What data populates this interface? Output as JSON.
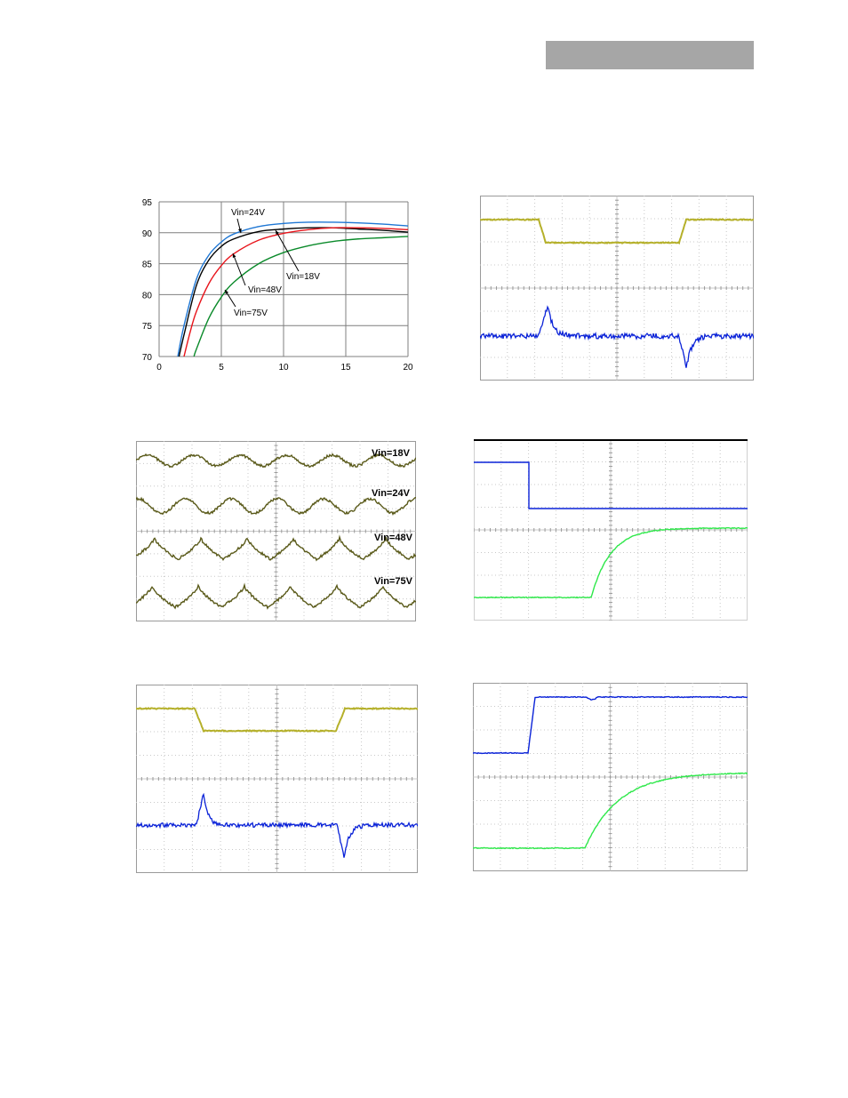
{
  "header": {
    "box_color": "#a6a6a6"
  },
  "efficiency_chart": {
    "chart_data": {
      "type": "line",
      "xlim": [
        0,
        20
      ],
      "ylim": [
        70,
        95
      ],
      "x_ticks": [
        "0",
        "5",
        "10",
        "15",
        "20"
      ],
      "y_ticks": [
        "95",
        "90",
        "85",
        "80",
        "75",
        "70"
      ],
      "grid": true,
      "series": [
        {
          "name": "Vin=24V",
          "color": "#1f77d4",
          "x": [
            1.5,
            2,
            3,
            4,
            5,
            6,
            8,
            10,
            12,
            14,
            16,
            18,
            20
          ],
          "y": [
            70,
            75,
            82.5,
            86.4,
            88.5,
            89.8,
            91.0,
            91.5,
            91.7,
            91.7,
            91.6,
            91.4,
            91.1
          ]
        },
        {
          "name": "Vin=18V",
          "color": "#000000",
          "x": [
            1.6,
            2,
            3,
            4,
            5,
            6,
            8,
            10,
            12,
            14,
            16,
            18,
            20
          ],
          "y": [
            70,
            73.5,
            81.5,
            85.6,
            87.8,
            89.0,
            90.2,
            90.6,
            90.8,
            90.8,
            90.6,
            90.4,
            90.1
          ]
        },
        {
          "name": "Vin=48V",
          "color": "#e8141b",
          "x": [
            2.0,
            2.5,
            3,
            4,
            5,
            6,
            8,
            10,
            12,
            14,
            16,
            18,
            20
          ],
          "y": [
            70,
            74,
            77.3,
            81.8,
            84.7,
            86.6,
            88.8,
            89.9,
            90.5,
            90.8,
            90.8,
            90.7,
            90.5
          ]
        },
        {
          "name": "Vin=75V",
          "color": "#0a8a2a",
          "x": [
            2.8,
            3,
            4,
            5,
            6,
            8,
            10,
            12,
            14,
            16,
            18,
            20
          ],
          "y": [
            70,
            71.2,
            76.2,
            79.6,
            82.0,
            85.0,
            86.8,
            87.9,
            88.6,
            89.0,
            89.2,
            89.4
          ]
        }
      ],
      "annotations": [
        "Vin=24V",
        "Vin=18V",
        "Vin=48V",
        "Vin=75V"
      ]
    }
  },
  "ripple_chart": {
    "labels": [
      "Vin=18V",
      "Vin=24V",
      "Vin=48V",
      "Vin=75V"
    ],
    "trace_color": "#5a5a1a"
  },
  "scope_colors": {
    "yellow": "#b5b02a",
    "blue": "#0a22d8",
    "green": "#2ee84a",
    "grid": "#c8c8c8",
    "border": "#9a9a9a"
  }
}
